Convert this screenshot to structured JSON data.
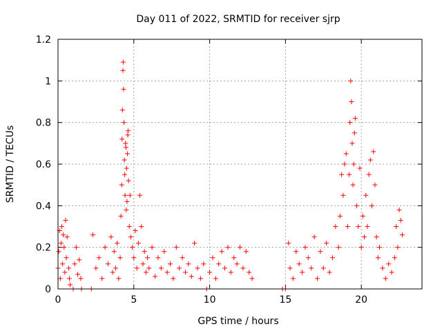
{
  "chart_data": {
    "type": "scatter",
    "title": "Day 011 of 2022, SRMTID for receiver sjrp",
    "xlabel": "GPS time / hours",
    "ylabel": "SRMTID / TECUs",
    "xlim": [
      0,
      24
    ],
    "ylim": [
      0,
      1.2
    ],
    "x_ticks": [
      0,
      5,
      10,
      15,
      20
    ],
    "y_ticks": [
      0,
      0.2,
      0.4,
      0.6,
      0.8,
      1,
      1.2
    ],
    "x_tick_labels": [
      "0",
      "5",
      "10",
      "15",
      "20"
    ],
    "y_tick_labels": [
      "0",
      "0.2",
      "0.4",
      "0.6",
      "0.8",
      "1",
      "1.2"
    ],
    "grid": true,
    "marker": "+",
    "series": [
      {
        "name": "SRMTID",
        "color": "#ff0000",
        "x": [
          0.0,
          0.05,
          0.1,
          0.15,
          0.2,
          0.25,
          0.3,
          0.35,
          0.4,
          0.45,
          0.5,
          0.55,
          0.6,
          0.7,
          0.75,
          0.8,
          1.0,
          1.1,
          1.2,
          1.3,
          1.4,
          1.5,
          1.55,
          2.2,
          2.3,
          2.5,
          2.7,
          2.9,
          3.1,
          3.3,
          3.5,
          3.6,
          3.7,
          3.8,
          3.9,
          4.0,
          4.1,
          4.15,
          4.2,
          4.22,
          4.25,
          4.28,
          4.3,
          4.32,
          4.35,
          4.38,
          4.4,
          4.42,
          4.45,
          4.48,
          4.5,
          4.52,
          4.55,
          4.58,
          4.6,
          4.62,
          4.65,
          4.7,
          4.75,
          4.8,
          4.9,
          5.0,
          5.1,
          5.2,
          5.3,
          5.4,
          5.5,
          5.6,
          5.7,
          5.8,
          5.9,
          6.0,
          6.2,
          6.4,
          6.6,
          6.8,
          7.0,
          7.2,
          7.4,
          7.6,
          7.8,
          8.0,
          8.2,
          8.4,
          8.6,
          8.8,
          9.0,
          9.2,
          9.4,
          9.6,
          9.8,
          10.0,
          10.2,
          10.4,
          10.6,
          10.8,
          11.0,
          11.2,
          11.4,
          11.6,
          11.8,
          12.0,
          12.2,
          12.4,
          12.6,
          12.8,
          14.8,
          15.0,
          15.2,
          15.3,
          15.5,
          15.7,
          15.9,
          16.1,
          16.3,
          16.5,
          16.7,
          16.9,
          17.1,
          17.3,
          17.5,
          17.7,
          17.9,
          18.1,
          18.3,
          18.5,
          18.6,
          18.7,
          18.8,
          18.9,
          19.0,
          19.1,
          19.2,
          19.25,
          19.3,
          19.35,
          19.4,
          19.45,
          19.5,
          19.55,
          19.6,
          19.7,
          19.8,
          19.9,
          20.0,
          20.1,
          20.2,
          20.3,
          20.4,
          20.5,
          20.6,
          20.7,
          20.8,
          20.9,
          21.0,
          21.1,
          21.2,
          21.4,
          21.6,
          21.8,
          22.0,
          22.2,
          22.3,
          22.4,
          22.5,
          22.6,
          22.7
        ],
        "y": [
          0.1,
          0.18,
          0.28,
          0.05,
          0.22,
          0.3,
          0.12,
          0.26,
          0.2,
          0.08,
          0.33,
          0.15,
          0.25,
          0.1,
          0.05,
          0.02,
          0.0,
          0.12,
          0.2,
          0.07,
          0.14,
          0.05,
          0.0,
          0.0,
          0.26,
          0.1,
          0.15,
          0.05,
          0.2,
          0.12,
          0.25,
          0.08,
          0.18,
          0.1,
          0.22,
          0.05,
          0.15,
          0.35,
          0.5,
          0.72,
          0.86,
          1.05,
          1.09,
          0.96,
          0.8,
          0.62,
          0.55,
          0.45,
          0.7,
          0.68,
          0.38,
          0.58,
          0.42,
          0.65,
          0.74,
          0.76,
          0.52,
          0.3,
          0.45,
          0.25,
          0.2,
          0.15,
          0.28,
          0.1,
          0.22,
          0.45,
          0.3,
          0.12,
          0.18,
          0.08,
          0.15,
          0.1,
          0.2,
          0.06,
          0.15,
          0.1,
          0.18,
          0.08,
          0.12,
          0.05,
          0.2,
          0.1,
          0.15,
          0.08,
          0.12,
          0.06,
          0.22,
          0.1,
          0.05,
          0.12,
          0.0,
          0.08,
          0.15,
          0.05,
          0.12,
          0.18,
          0.1,
          0.2,
          0.08,
          0.15,
          0.12,
          0.2,
          0.1,
          0.18,
          0.08,
          0.05,
          0.0,
          0.0,
          0.22,
          0.1,
          0.05,
          0.18,
          0.12,
          0.08,
          0.2,
          0.15,
          0.1,
          0.25,
          0.05,
          0.18,
          0.1,
          0.22,
          0.08,
          0.15,
          0.3,
          0.2,
          0.35,
          0.55,
          0.45,
          0.6,
          0.65,
          0.3,
          0.55,
          0.8,
          1.0,
          0.9,
          0.7,
          0.5,
          0.6,
          0.75,
          0.82,
          0.4,
          0.3,
          0.58,
          0.2,
          0.35,
          0.25,
          0.45,
          0.3,
          0.55,
          0.62,
          0.4,
          0.66,
          0.5,
          0.25,
          0.15,
          0.2,
          0.1,
          0.05,
          0.12,
          0.08,
          0.15,
          0.3,
          0.2,
          0.38,
          0.33,
          0.26
        ]
      }
    ]
  }
}
